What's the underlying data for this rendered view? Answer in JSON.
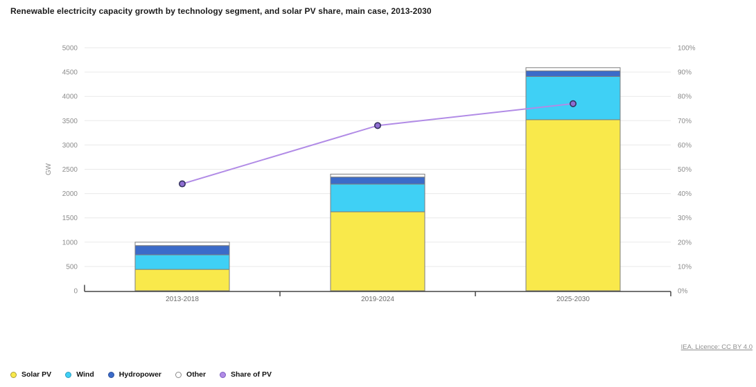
{
  "title": "Renewable electricity capacity growth by technology segment, and solar PV share, main case, 2013-2030",
  "footer": {
    "license_text": "IEA. Licence: CC BY 4.0"
  },
  "chart_data": {
    "type": "bar",
    "subtype": "stacked-bar-with-line",
    "categories": [
      "2013-2018",
      "2019-2024",
      "2025-2030"
    ],
    "series": [
      {
        "name": "Solar PV",
        "type": "bar",
        "axis": "left",
        "color": "#f9e94b",
        "legend_border": "#a99d3a",
        "values": [
          440,
          1625,
          3520
        ]
      },
      {
        "name": "Wind",
        "type": "bar",
        "axis": "left",
        "color": "#3fd0f5",
        "legend_border": "#2d9cbd",
        "values": [
          300,
          570,
          890
        ]
      },
      {
        "name": "Hydropower",
        "type": "bar",
        "axis": "left",
        "color": "#3b6bc9",
        "legend_border": "#2c4f99",
        "values": [
          190,
          145,
          115
        ]
      },
      {
        "name": "Other",
        "type": "bar",
        "axis": "left",
        "color": "#ffffff",
        "legend_border": "#8a8a8a",
        "values": [
          70,
          60,
          65
        ]
      },
      {
        "name": "Share of PV",
        "type": "line",
        "axis": "right",
        "color": "#b18be6",
        "legend_border": "#7b5cc0",
        "values": [
          44,
          68,
          77
        ]
      }
    ],
    "left_axis": {
      "label": "GW",
      "min": 0,
      "max": 5000,
      "step": 500
    },
    "right_axis": {
      "label": "",
      "min": 0,
      "max": 100,
      "step": 10,
      "suffix": "%"
    },
    "grid": true,
    "legend_position": "bottom-left",
    "colors": {
      "gridline": "#e9e9e9",
      "axis_line": "#444444",
      "bar_stroke": "#7d7d7d",
      "line_stroke": "#b18be6",
      "dot_fill": "#8f6ed2",
      "dot_stroke": "#34315f"
    }
  }
}
